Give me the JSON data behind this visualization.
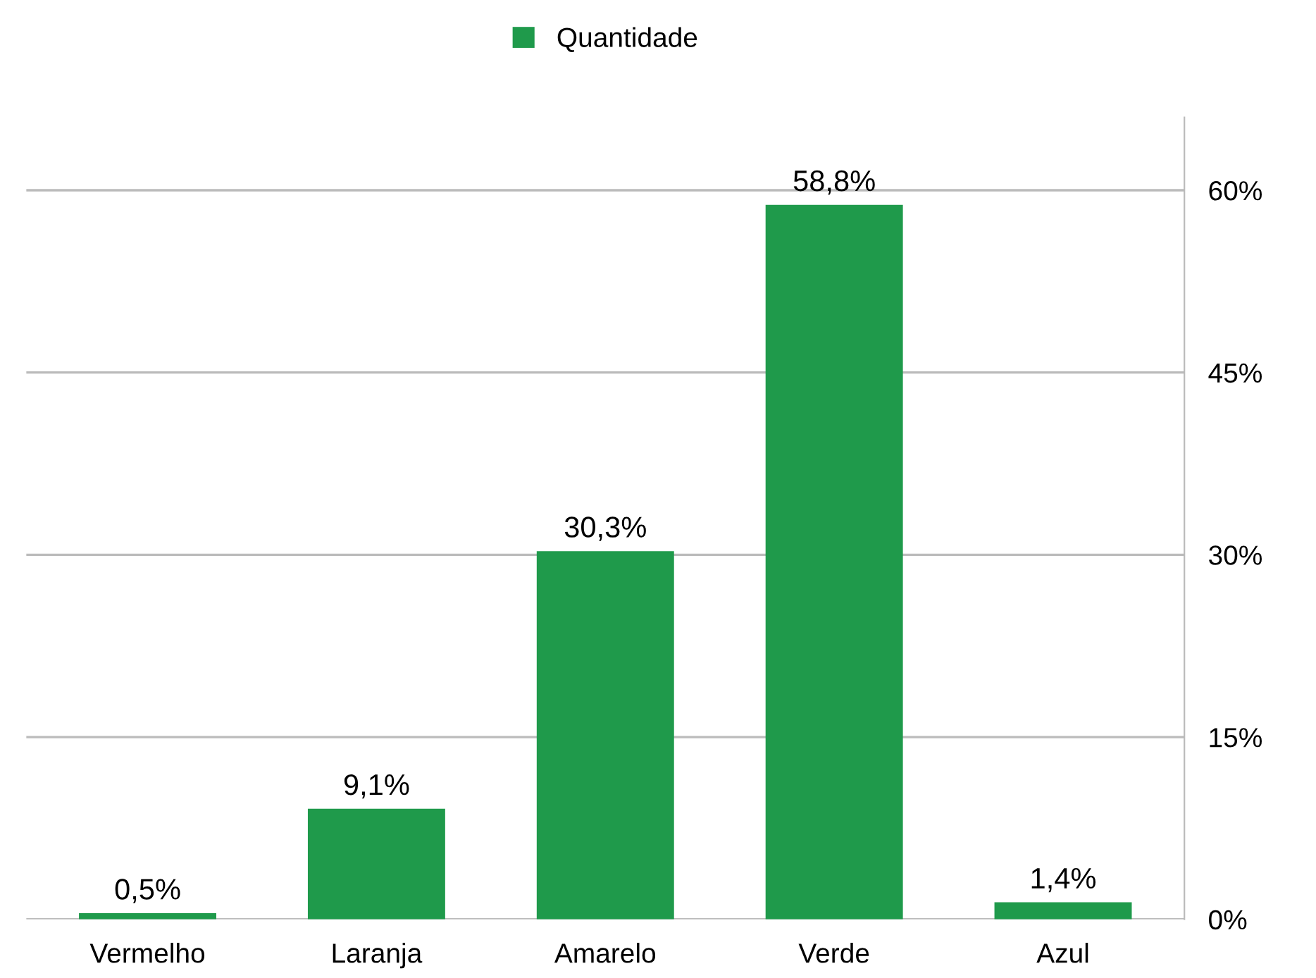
{
  "chart_data": {
    "type": "bar",
    "categories": [
      "Vermelho",
      "Laranja",
      "Amarelo",
      "Verde",
      "Azul"
    ],
    "series": [
      {
        "name": "Quantidade",
        "color": "#1f9a4b",
        "values": [
          0.5,
          9.1,
          30.3,
          58.8,
          1.4
        ],
        "value_labels": [
          "0,5%",
          "9,1%",
          "30,3%",
          "58,8%",
          "1,4%"
        ]
      }
    ],
    "ylim": [
      0,
      66
    ],
    "yticks": [
      {
        "value": 0,
        "label": "0%"
      },
      {
        "value": 15,
        "label": "15%"
      },
      {
        "value": 30,
        "label": "30%"
      },
      {
        "value": 45,
        "label": "45%"
      },
      {
        "value": 60,
        "label": "60%"
      }
    ],
    "grid": "y",
    "legend": "top"
  }
}
